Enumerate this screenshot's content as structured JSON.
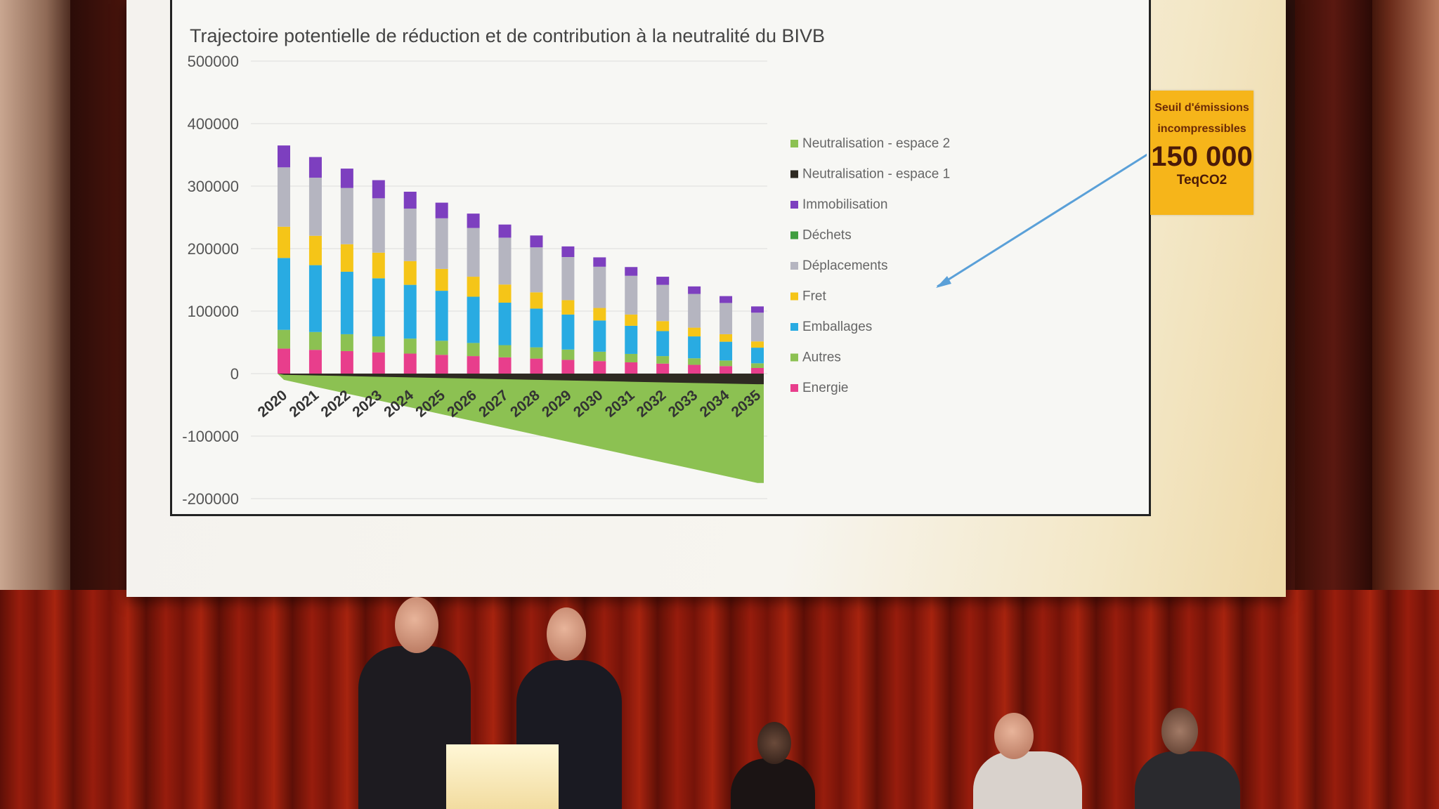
{
  "chart_data": {
    "type": "bar",
    "title": "Trajectoire potentielle de réduction et de contribution à la neutralité du BIVB",
    "categories": [
      "2020",
      "2021",
      "2022",
      "2023",
      "2024",
      "2025",
      "2026",
      "2027",
      "2028",
      "2029",
      "2030",
      "2031",
      "2032",
      "2033",
      "2034",
      "2035"
    ],
    "y_ticks": [
      "500000",
      "400000",
      "300000",
      "200000",
      "100000",
      "0",
      "-100000",
      "-200000"
    ],
    "ylim": [
      -200000,
      500000
    ],
    "grid": true,
    "legend_position": "right",
    "series": [
      {
        "name": "Energie",
        "color": "#e83e8c",
        "values": [
          40000,
          38000,
          36000,
          34000,
          32000,
          30000,
          28000,
          26000,
          24000,
          22000,
          20000,
          18000,
          16000,
          14000,
          12000,
          9000
        ]
      },
      {
        "name": "Autres",
        "color": "#8cc152",
        "values": [
          30000,
          28500,
          27000,
          25500,
          24000,
          22500,
          21000,
          19500,
          18000,
          16500,
          15000,
          13500,
          12000,
          10500,
          9000,
          7500
        ]
      },
      {
        "name": "Emballages",
        "color": "#29abe2",
        "values": [
          115000,
          107000,
          100000,
          93000,
          86000,
          80000,
          74000,
          68000,
          62000,
          56000,
          50000,
          45000,
          40000,
          35000,
          30000,
          25000
        ]
      },
      {
        "name": "Fret",
        "color": "#f5c518",
        "values": [
          50000,
          47000,
          44000,
          41000,
          38000,
          35000,
          32000,
          29000,
          26000,
          23000,
          20000,
          18000,
          16000,
          14000,
          12000,
          10000
        ]
      },
      {
        "name": "Déplacements",
        "color": "#b5b5c0",
        "values": [
          95000,
          93000,
          90000,
          87000,
          84000,
          81000,
          78000,
          75000,
          72000,
          69000,
          66000,
          62000,
          58000,
          54000,
          50000,
          46000
        ]
      },
      {
        "name": "Déchets",
        "color": "#3f9e3f",
        "values": [
          0,
          0,
          0,
          0,
          0,
          0,
          0,
          0,
          0,
          0,
          0,
          0,
          0,
          0,
          0,
          0
        ]
      },
      {
        "name": "Immobilisation",
        "color": "#7d3fbf",
        "values": [
          35000,
          33000,
          31000,
          29000,
          27000,
          25000,
          23000,
          21000,
          19000,
          17000,
          15000,
          14000,
          13000,
          12000,
          11000,
          10000
        ]
      },
      {
        "name": "Neutralisation - espace 1",
        "color": "#2e2a22",
        "values": [
          -2000,
          -3000,
          -4000,
          -5000,
          -6000,
          -7000,
          -8000,
          -9000,
          -10000,
          -11000,
          -12000,
          -13000,
          -14000,
          -15000,
          -16000,
          -17000
        ]
      },
      {
        "name": "Neutralisation - espace 2",
        "color": "#8cc152",
        "values": [
          -8000,
          -18000,
          -28000,
          -38000,
          -48000,
          -58000,
          -68000,
          -78000,
          -88000,
          -98000,
          -108000,
          -118000,
          -128000,
          -138000,
          -148000,
          -158000
        ]
      }
    ]
  },
  "badge": {
    "top_line_1": "Seuil d'émissions",
    "top_line_2": "incompressibles",
    "value": "150 000",
    "unit": "TeqCO2",
    "color": "#f6b51a"
  }
}
